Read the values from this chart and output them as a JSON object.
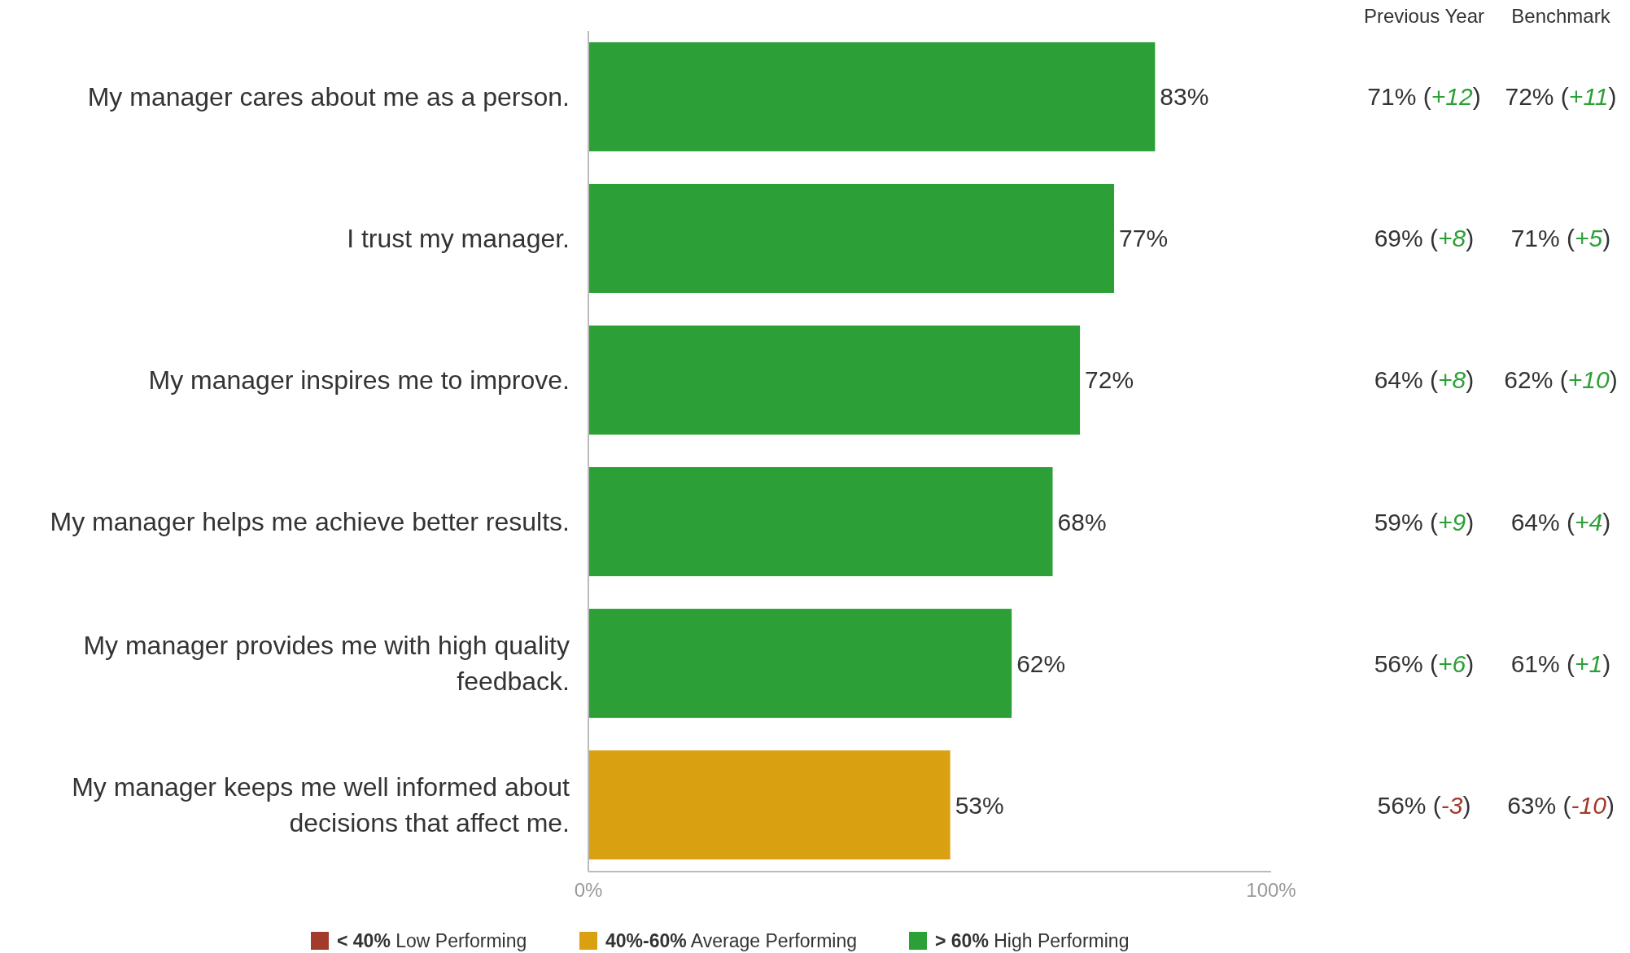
{
  "chart_data": {
    "type": "bar",
    "orientation": "horizontal",
    "categories": [
      "My manager cares about me as a person.",
      "I trust my manager.",
      "My manager inspires me to improve.",
      "My manager helps me achieve better results.",
      "My manager provides me with high quality feedback.",
      "My manager keeps me well informed about decisions that affect me."
    ],
    "series": [
      {
        "name": "< 40% Low Performing",
        "color": "#a23b2b",
        "values": [
          null,
          null,
          null,
          null,
          null,
          null
        ],
        "value_labels": [
          null,
          null,
          null,
          null,
          null,
          null
        ]
      },
      {
        "name": "40%-60% Average Performing",
        "color": "#d9a112",
        "values": [
          null,
          null,
          null,
          null,
          null,
          53
        ],
        "value_labels": [
          null,
          null,
          null,
          null,
          null,
          "53%"
        ]
      },
      {
        "name": "> 60% High Performing",
        "color": "#2ca037",
        "values": [
          83,
          77,
          72,
          68,
          62,
          null
        ],
        "value_labels": [
          "83%",
          "77%",
          "72%",
          "68%",
          "62%",
          null
        ]
      }
    ],
    "xlim": [
      0,
      100
    ],
    "xticks": [
      {
        "value": 0,
        "label": "0%"
      },
      {
        "value": 100,
        "label": "100%"
      }
    ],
    "grid": false,
    "legend": "bottom",
    "annotations": [
      "Previous Year",
      "Benchmark",
      "71% (+12)",
      "72% (+11)",
      "69% (+8)",
      "71% (+5)",
      "64% (+8)",
      "62% (+10)",
      "59% (+9)",
      "64% (+4)",
      "56% (+6)",
      "61% (+1)",
      "56% (-3)",
      "63% (-10)"
    ]
  }
}
